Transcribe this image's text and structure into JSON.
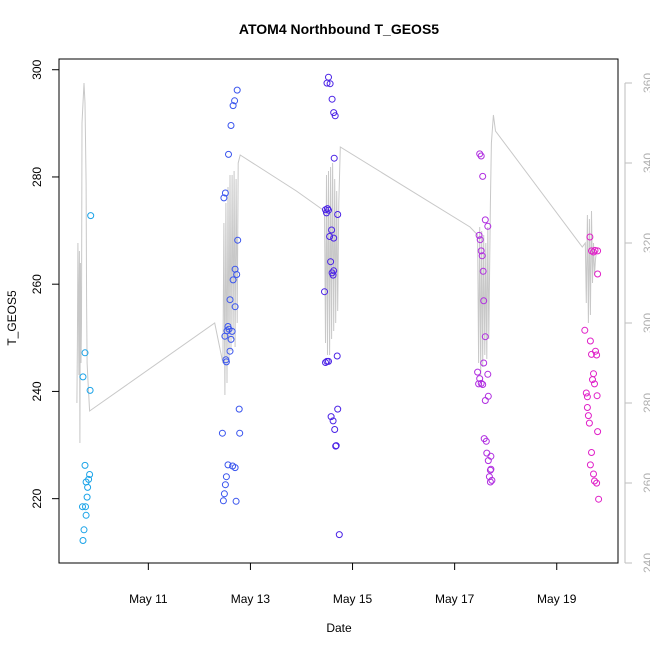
{
  "chart_data": {
    "type": "scatter",
    "title": "ATOM4 Northbound T_GEOS5",
    "xlabel": "Date",
    "ylabel": "T_GEOS5",
    "x_ticks": [
      {
        "label": "May 11",
        "value": 11
      },
      {
        "label": "May 13",
        "value": 13
      },
      {
        "label": "May 15",
        "value": 15
      },
      {
        "label": "May 17",
        "value": 17
      },
      {
        "label": "May 19",
        "value": 19
      }
    ],
    "xlim": [
      9.25,
      20.2
    ],
    "ylim": [
      208,
      302
    ],
    "yticks": [
      220,
      240,
      260,
      280,
      300
    ],
    "y2lim": [
      240,
      366
    ],
    "y2ticks": [
      240,
      260,
      280,
      300,
      320,
      340,
      360
    ],
    "y2_color": "#bdbdbd",
    "grid": false,
    "legend": "none",
    "series": [
      {
        "color": "#1aa3e8",
        "points": [
          [
            9.72,
            242.7
          ],
          [
            9.76,
            247.2
          ],
          [
            9.71,
            218.5
          ],
          [
            9.74,
            214.2
          ],
          [
            9.72,
            212.2
          ],
          [
            9.78,
            223.1
          ],
          [
            9.76,
            226.2
          ],
          [
            9.77,
            218.5
          ],
          [
            9.78,
            216.9
          ],
          [
            9.81,
            222.1
          ],
          [
            9.83,
            223.6
          ],
          [
            9.85,
            224.5
          ],
          [
            9.8,
            220.3
          ],
          [
            9.86,
            240.2
          ],
          [
            9.87,
            272.8
          ]
        ]
      },
      {
        "color": "#3a55ee",
        "points": [
          [
            12.45,
            232.2
          ],
          [
            12.47,
            219.6
          ],
          [
            12.49,
            220.9
          ],
          [
            12.51,
            222.6
          ],
          [
            12.53,
            224.1
          ],
          [
            12.56,
            226.3
          ],
          [
            12.52,
            245.9
          ],
          [
            12.53,
            245.5
          ],
          [
            12.5,
            250.3
          ],
          [
            12.54,
            251.3
          ],
          [
            12.56,
            252.1
          ],
          [
            12.58,
            251.6
          ],
          [
            12.6,
            247.5
          ],
          [
            12.62,
            249.7
          ],
          [
            12.64,
            251.2
          ],
          [
            12.48,
            276.1
          ],
          [
            12.51,
            277.0
          ],
          [
            12.57,
            284.2
          ],
          [
            12.62,
            289.6
          ],
          [
            12.66,
            293.3
          ],
          [
            12.69,
            294.2
          ],
          [
            12.74,
            296.2
          ],
          [
            12.65,
            226.1
          ],
          [
            12.7,
            225.8
          ],
          [
            12.72,
            219.5
          ],
          [
            12.66,
            260.8
          ],
          [
            12.7,
            262.8
          ],
          [
            12.73,
            261.8
          ],
          [
            12.7,
            255.8
          ],
          [
            12.75,
            268.2
          ],
          [
            12.78,
            236.7
          ],
          [
            12.79,
            232.2
          ],
          [
            12.6,
            257.1
          ]
        ]
      },
      {
        "color": "#4a22e6",
        "points": [
          [
            14.45,
            258.6
          ],
          [
            14.47,
            245.4
          ],
          [
            14.5,
            245.6
          ],
          [
            14.53,
            245.6
          ],
          [
            14.47,
            273.9
          ],
          [
            14.49,
            273.3
          ],
          [
            14.51,
            274.1
          ],
          [
            14.53,
            273.8
          ],
          [
            14.55,
            268.9
          ],
          [
            14.57,
            264.2
          ],
          [
            14.59,
            270.1
          ],
          [
            14.6,
            262.1
          ],
          [
            14.62,
            261.7
          ],
          [
            14.63,
            268.6
          ],
          [
            14.64,
            283.5
          ],
          [
            14.58,
            235.3
          ],
          [
            14.62,
            234.5
          ],
          [
            14.65,
            232.9
          ],
          [
            14.67,
            229.8
          ],
          [
            14.68,
            229.9
          ],
          [
            14.71,
            236.7
          ],
          [
            14.7,
            246.6
          ],
          [
            14.71,
            273.0
          ],
          [
            14.74,
            213.3
          ],
          [
            14.5,
            297.5
          ],
          [
            14.53,
            298.6
          ],
          [
            14.56,
            297.4
          ],
          [
            14.6,
            294.5
          ],
          [
            14.63,
            292.0
          ],
          [
            14.66,
            291.4
          ],
          [
            14.63,
            262.5
          ]
        ]
      },
      {
        "color": "#b02ee0",
        "points": [
          [
            17.45,
            243.6
          ],
          [
            17.47,
            241.4
          ],
          [
            17.49,
            242.4
          ],
          [
            17.52,
            241.5
          ],
          [
            17.55,
            241.3
          ],
          [
            17.57,
            245.3
          ],
          [
            17.48,
            269.1
          ],
          [
            17.5,
            268.3
          ],
          [
            17.52,
            266.2
          ],
          [
            17.54,
            265.3
          ],
          [
            17.56,
            262.4
          ],
          [
            17.57,
            256.9
          ],
          [
            17.6,
            250.2
          ],
          [
            17.65,
            243.2
          ],
          [
            17.66,
            239.1
          ],
          [
            17.6,
            238.3
          ],
          [
            17.49,
            284.3
          ],
          [
            17.52,
            283.9
          ],
          [
            17.55,
            280.1
          ],
          [
            17.6,
            272.0
          ],
          [
            17.65,
            270.8
          ],
          [
            17.58,
            231.2
          ],
          [
            17.62,
            230.7
          ],
          [
            17.63,
            228.5
          ],
          [
            17.66,
            227.1
          ],
          [
            17.7,
            225.3
          ],
          [
            17.71,
            225.5
          ],
          [
            17.68,
            224.1
          ],
          [
            17.7,
            223.1
          ],
          [
            17.73,
            223.4
          ],
          [
            17.71,
            227.9
          ]
        ]
      },
      {
        "color": "#e020c8",
        "points": [
          [
            19.55,
            251.4
          ],
          [
            19.58,
            239.7
          ],
          [
            19.6,
            239.0
          ],
          [
            19.6,
            237.0
          ],
          [
            19.62,
            235.5
          ],
          [
            19.64,
            234.1
          ],
          [
            19.66,
            249.4
          ],
          [
            19.68,
            246.9
          ],
          [
            19.7,
            242.2
          ],
          [
            19.72,
            243.3
          ],
          [
            19.74,
            241.4
          ],
          [
            19.76,
            247.5
          ],
          [
            19.78,
            246.8
          ],
          [
            19.79,
            239.2
          ],
          [
            19.8,
            232.5
          ],
          [
            19.65,
            268.8
          ],
          [
            19.68,
            266.2
          ],
          [
            19.72,
            266.0
          ],
          [
            19.75,
            266.3
          ],
          [
            19.8,
            266.2
          ],
          [
            19.8,
            261.9
          ],
          [
            19.66,
            226.3
          ],
          [
            19.68,
            228.6
          ],
          [
            19.72,
            224.6
          ],
          [
            19.74,
            223.3
          ],
          [
            19.78,
            222.9
          ],
          [
            19.82,
            219.9
          ]
        ]
      }
    ],
    "line2": {
      "color": "#c8c8c8",
      "points": [
        [
          9.6,
          280
        ],
        [
          9.61,
          295
        ],
        [
          9.62,
          320
        ],
        [
          9.63,
          305
        ],
        [
          9.64,
          287
        ],
        [
          9.65,
          318
        ],
        [
          9.66,
          270
        ],
        [
          9.67,
          315
        ],
        [
          9.68,
          290
        ],
        [
          9.69,
          300
        ],
        [
          9.7,
          350
        ],
        [
          9.72,
          355
        ],
        [
          9.74,
          360
        ],
        [
          9.76,
          355
        ],
        [
          9.78,
          335
        ],
        [
          9.79,
          305
        ],
        [
          9.8,
          290
        ],
        [
          9.82,
          285
        ],
        [
          9.85,
          278
        ],
        [
          12.3,
          300
        ],
        [
          12.46,
          290
        ],
        [
          12.48,
          325
        ],
        [
          12.5,
          282
        ],
        [
          12.52,
          330
        ],
        [
          12.54,
          285
        ],
        [
          12.56,
          334
        ],
        [
          12.58,
          290
        ],
        [
          12.6,
          337
        ],
        [
          12.62,
          293
        ],
        [
          12.64,
          337
        ],
        [
          12.66,
          296
        ],
        [
          12.68,
          338
        ],
        [
          12.7,
          294
        ],
        [
          12.72,
          336
        ],
        [
          12.74,
          300
        ],
        [
          12.76,
          340
        ],
        [
          12.8,
          342
        ],
        [
          13.9,
          333
        ],
        [
          14.45,
          328
        ],
        [
          14.47,
          295
        ],
        [
          14.49,
          337
        ],
        [
          14.51,
          292
        ],
        [
          14.53,
          338
        ],
        [
          14.55,
          292
        ],
        [
          14.57,
          339
        ],
        [
          14.59,
          296
        ],
        [
          14.61,
          340
        ],
        [
          14.63,
          298
        ],
        [
          14.65,
          336
        ],
        [
          14.67,
          300
        ],
        [
          14.69,
          333
        ],
        [
          14.71,
          303
        ],
        [
          14.73,
          330
        ],
        [
          14.76,
          344
        ],
        [
          17.3,
          324
        ],
        [
          17.45,
          322
        ],
        [
          17.47,
          290
        ],
        [
          17.49,
          324
        ],
        [
          17.51,
          287
        ],
        [
          17.53,
          323
        ],
        [
          17.55,
          289
        ],
        [
          17.57,
          322
        ],
        [
          17.59,
          292
        ],
        [
          17.61,
          320
        ],
        [
          17.63,
          291
        ],
        [
          17.65,
          324
        ],
        [
          17.67,
          296
        ],
        [
          17.7,
          330
        ],
        [
          17.72,
          345
        ],
        [
          17.76,
          352
        ],
        [
          17.8,
          348
        ],
        [
          19.5,
          319
        ],
        [
          19.56,
          320
        ],
        [
          19.58,
          305
        ],
        [
          19.6,
          327
        ],
        [
          19.62,
          300
        ],
        [
          19.64,
          326
        ],
        [
          19.66,
          302
        ],
        [
          19.68,
          328
        ],
        [
          19.7,
          310
        ],
        [
          19.72,
          320
        ],
        [
          19.74,
          312
        ],
        [
          19.76,
          316
        ],
        [
          19.78,
          318
        ]
      ]
    }
  }
}
